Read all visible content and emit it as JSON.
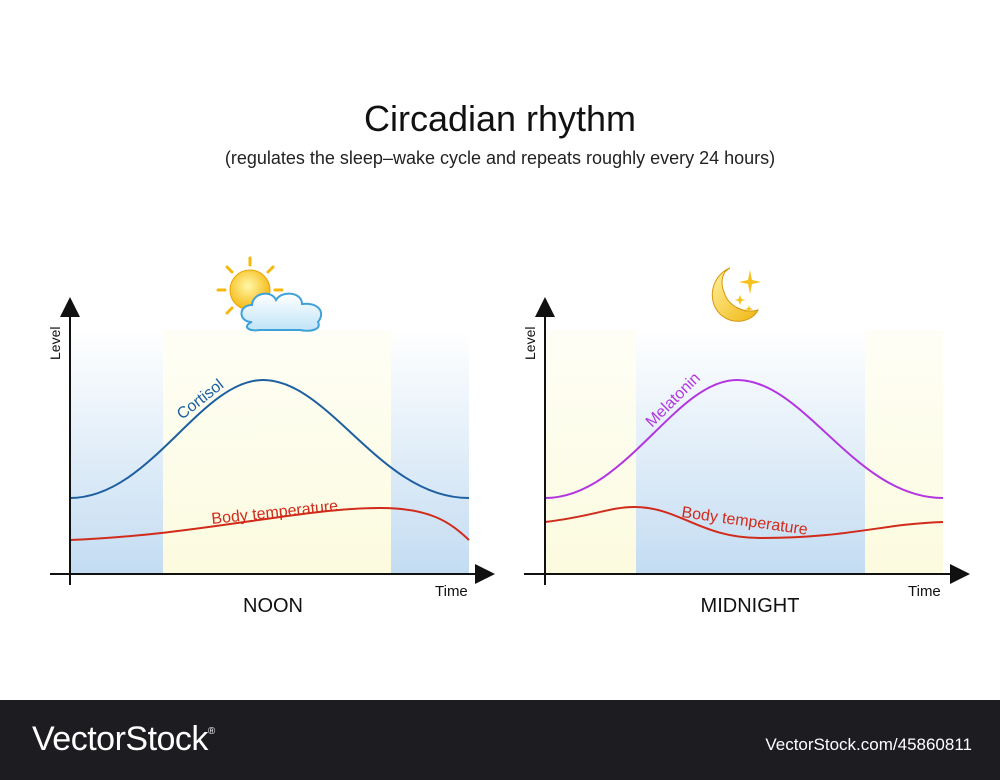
{
  "title": "Circadian rhythm",
  "subtitle": "(regulates the sleep–wake cycle and repeats roughly every 24 hours)",
  "axis": {
    "y_label": "Level",
    "x_label": "Time"
  },
  "left_panel": {
    "caption": "NOON",
    "icon": "sun-cloud-icon",
    "curves": {
      "primary": "Cortisol",
      "secondary": "Body temperature"
    },
    "colors": {
      "primary": "#1d5fa0",
      "secondary": "#d02b1b",
      "day_band": "#fcfbdf",
      "night_band": "#c3dcf2"
    }
  },
  "right_panel": {
    "caption": "MIDNIGHT",
    "icon": "moon-stars-icon",
    "curves": {
      "primary": "Melatonin",
      "secondary": "Body temperature"
    },
    "colors": {
      "primary": "#b235e0",
      "secondary": "#d02b1b",
      "day_band": "#fcfbdf",
      "night_band": "#c3dcf2"
    }
  },
  "footer": {
    "brand": "VectorStock",
    "brand_mark": "®",
    "id": "VectorStock.com/45860811"
  }
}
